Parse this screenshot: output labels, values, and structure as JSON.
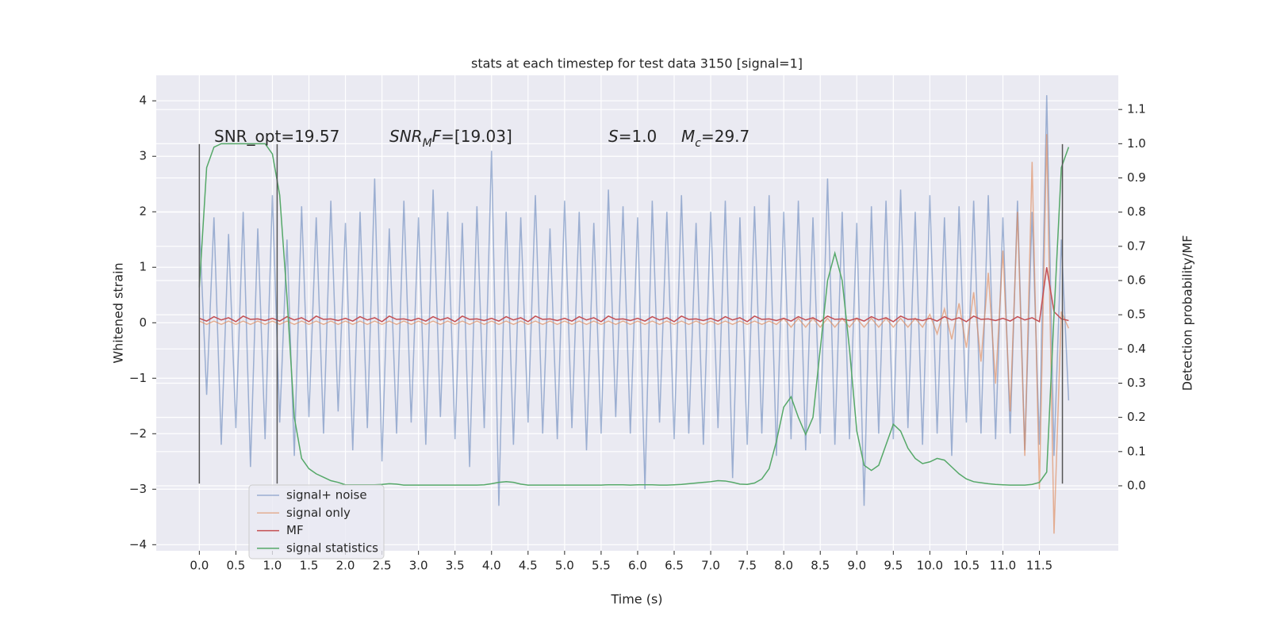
{
  "chart_data": {
    "type": "line",
    "title": "stats at each timestep for test data 3150 [signal=1]",
    "xlabel": "Time (s)",
    "ylabel": "Whitened strain",
    "y2label": "Detection probability/MF",
    "grid": true,
    "legend": "lower left",
    "xlim": [
      -0.59,
      12.58
    ],
    "ylim": [
      -4.11,
      4.46
    ],
    "y2lim": [
      -0.19,
      1.2
    ],
    "xticks": [
      {
        "value": 0,
        "label": "0.0"
      },
      {
        "value": 0.5,
        "label": "0.5"
      },
      {
        "value": 1,
        "label": "1.0"
      },
      {
        "value": 1.5,
        "label": "1.5"
      },
      {
        "value": 2,
        "label": "2.0"
      },
      {
        "value": 2.5,
        "label": "2.5"
      },
      {
        "value": 3,
        "label": "3.0"
      },
      {
        "value": 3.5,
        "label": "3.5"
      },
      {
        "value": 4,
        "label": "4.0"
      },
      {
        "value": 4.5,
        "label": "4.5"
      },
      {
        "value": 5,
        "label": "5.0"
      },
      {
        "value": 5.5,
        "label": "5.5"
      },
      {
        "value": 6,
        "label": "6.0"
      },
      {
        "value": 6.5,
        "label": "6.5"
      },
      {
        "value": 7,
        "label": "7.0"
      },
      {
        "value": 7.5,
        "label": "7.5"
      },
      {
        "value": 8,
        "label": "8.0"
      },
      {
        "value": 8.5,
        "label": "8.5"
      },
      {
        "value": 9,
        "label": "9.0"
      },
      {
        "value": 9.5,
        "label": "9.5"
      },
      {
        "value": 10,
        "label": "10.0"
      },
      {
        "value": 10.5,
        "label": "10.5"
      },
      {
        "value": 11,
        "label": "11.0"
      },
      {
        "value": 11.5,
        "label": "11.5"
      }
    ],
    "yticks": [
      {
        "value": -4,
        "label": "−4"
      },
      {
        "value": -3,
        "label": "−3"
      },
      {
        "value": -2,
        "label": "−2"
      },
      {
        "value": -1,
        "label": "−1"
      },
      0,
      1,
      2,
      3,
      4
    ],
    "y2ticks": [
      {
        "value": 0,
        "label": "0.0"
      },
      {
        "value": 0.1,
        "label": "0.1"
      },
      {
        "value": 0.2,
        "label": "0.2"
      },
      {
        "value": 0.3,
        "label": "0.3"
      },
      {
        "value": 0.4,
        "label": "0.4"
      },
      {
        "value": 0.5,
        "label": "0.5"
      },
      {
        "value": 0.6,
        "label": "0.6"
      },
      {
        "value": 0.7,
        "label": "0.7"
      },
      {
        "value": 0.8,
        "label": "0.8"
      },
      {
        "value": 0.9,
        "label": "0.9"
      },
      {
        "value": 1,
        "label": "1.0"
      },
      {
        "value": 1.1,
        "label": "1.1"
      }
    ],
    "annotations": [
      [
        {
          "text": "SNR_opt=19.57"
        }
      ],
      [
        {
          "text": "SNR",
          "italic": true
        },
        {
          "text": "M",
          "italic": true,
          "sub": true
        },
        {
          "text": "F",
          "italic": true
        },
        {
          "text": "=[19.03]"
        }
      ],
      [
        {
          "text": "S",
          "italic": true
        },
        {
          "text": "=1.0"
        }
      ],
      [
        {
          "text": "M",
          "italic": true
        },
        {
          "text": "c",
          "italic": true,
          "sub": true
        },
        {
          "text": "=29.7"
        }
      ]
    ],
    "vlines": {
      "x": [
        0,
        1.065,
        11.815
      ],
      "ymin": -2.9,
      "ymax": 3.22,
      "color": "#555555"
    },
    "x": [
      0,
      0.1,
      0.2,
      0.3,
      0.4,
      0.5,
      0.6,
      0.7,
      0.8,
      0.9,
      1,
      1.1,
      1.2,
      1.3,
      1.4,
      1.5,
      1.6,
      1.7,
      1.8,
      1.9,
      2,
      2.1,
      2.2,
      2.3,
      2.4,
      2.5,
      2.6,
      2.7,
      2.8,
      2.9,
      3,
      3.1,
      3.2,
      3.3,
      3.4,
      3.5,
      3.6,
      3.7,
      3.8,
      3.9,
      4,
      4.1,
      4.2,
      4.3,
      4.4,
      4.5,
      4.6,
      4.7,
      4.8,
      4.9,
      5,
      5.1,
      5.2,
      5.3,
      5.4,
      5.5,
      5.6,
      5.7,
      5.8,
      5.9,
      6,
      6.1,
      6.2,
      6.3,
      6.4,
      6.5,
      6.6,
      6.7,
      6.8,
      6.9,
      7,
      7.1,
      7.2,
      7.3,
      7.4,
      7.5,
      7.6,
      7.7,
      7.8,
      7.9,
      8,
      8.1,
      8.2,
      8.3,
      8.4,
      8.5,
      8.6,
      8.7,
      8.8,
      8.9,
      9,
      9.1,
      9.2,
      9.3,
      9.4,
      9.5,
      9.6,
      9.7,
      9.8,
      9.9,
      10,
      10.1,
      10.2,
      10.3,
      10.4,
      10.5,
      10.6,
      10.7,
      10.8,
      10.9,
      11,
      11.1,
      11.2,
      11.3,
      11.4,
      11.5,
      11.6,
      11.7,
      11.8,
      11.9
    ],
    "series": [
      {
        "name": "signal+ noise",
        "color": "#4c72b0",
        "opacity": 0.5,
        "values": [
          1.8,
          -1.3,
          1.9,
          -2.2,
          1.6,
          -1.9,
          2.0,
          -2.6,
          1.7,
          -2.1,
          2.3,
          -1.8,
          1.5,
          -2.4,
          2.1,
          -1.7,
          1.9,
          -2.0,
          2.2,
          -1.6,
          1.8,
          -2.3,
          2.0,
          -1.9,
          2.6,
          -2.5,
          1.7,
          -2.0,
          2.2,
          -1.8,
          1.9,
          -2.2,
          2.4,
          -1.7,
          2.0,
          -2.1,
          1.8,
          -2.6,
          2.1,
          -1.9,
          3.1,
          -3.3,
          2.0,
          -2.2,
          1.9,
          -1.8,
          2.3,
          -2.0,
          1.7,
          -2.1,
          2.2,
          -1.9,
          2.0,
          -2.3,
          1.8,
          -2.0,
          2.4,
          -1.7,
          2.1,
          -2.0,
          1.9,
          -3.0,
          2.2,
          -1.8,
          2.0,
          -2.1,
          2.3,
          -2.0,
          1.8,
          -2.2,
          2.0,
          -1.9,
          2.2,
          -2.8,
          1.9,
          -2.2,
          2.1,
          -2.0,
          2.3,
          -2.4,
          2.0,
          -2.1,
          2.2,
          -2.3,
          1.9,
          -2.0,
          2.6,
          -2.2,
          2.0,
          -2.1,
          1.8,
          -3.3,
          2.1,
          -2.0,
          2.2,
          -2.1,
          2.4,
          -1.9,
          2.0,
          -2.2,
          2.3,
          -2.0,
          1.9,
          -2.4,
          2.1,
          -1.8,
          2.2,
          -2.0,
          2.3,
          -2.1,
          1.9,
          -2.0,
          2.2,
          -2.3,
          2.0,
          -2.2,
          4.1,
          -2.4,
          1.5,
          -1.4
        ]
      },
      {
        "name": "signal only",
        "color": "#dd8452",
        "opacity": 0.6,
        "values": [
          0.03,
          -0.03,
          0.03,
          -0.03,
          0.03,
          -0.03,
          0.03,
          -0.03,
          0.03,
          -0.03,
          0.03,
          -0.03,
          0.03,
          -0.03,
          0.03,
          -0.03,
          0.03,
          -0.03,
          0.03,
          -0.03,
          0.03,
          -0.03,
          0.03,
          -0.03,
          0.03,
          -0.03,
          0.03,
          -0.03,
          0.03,
          -0.03,
          0.03,
          -0.03,
          0.03,
          -0.03,
          0.03,
          -0.03,
          0.03,
          -0.03,
          0.03,
          -0.03,
          0.03,
          -0.03,
          0.03,
          -0.03,
          0.03,
          -0.03,
          0.03,
          -0.03,
          0.03,
          -0.03,
          0.03,
          -0.03,
          0.03,
          -0.03,
          0.03,
          -0.03,
          0.03,
          -0.03,
          0.03,
          -0.03,
          0.03,
          -0.03,
          0.03,
          -0.03,
          0.03,
          -0.03,
          0.03,
          -0.03,
          0.03,
          -0.03,
          0.03,
          -0.03,
          0.03,
          -0.03,
          0.03,
          -0.03,
          0.03,
          -0.03,
          0.03,
          -0.03,
          0.08,
          -0.08,
          0.08,
          -0.08,
          0.08,
          -0.08,
          0.08,
          -0.08,
          0.08,
          -0.08,
          0.08,
          -0.08,
          0.08,
          -0.08,
          0.08,
          -0.08,
          0.08,
          -0.08,
          0.08,
          -0.08,
          0.15,
          -0.2,
          0.25,
          -0.3,
          0.35,
          -0.45,
          0.55,
          -0.7,
          0.9,
          -1.1,
          1.3,
          -1.6,
          2.0,
          -2.4,
          2.9,
          -3.0,
          3.4,
          -3.8,
          0.2,
          -0.1
        ]
      },
      {
        "name": "MF",
        "color": "#c44e52",
        "opacity": 1,
        "values": [
          0.08,
          0.03,
          0.11,
          0.05,
          0.09,
          0.02,
          0.12,
          0.06,
          0.07,
          0.04,
          0.08,
          0.03,
          0.11,
          0.05,
          0.09,
          0.02,
          0.12,
          0.06,
          0.07,
          0.04,
          0.08,
          0.03,
          0.11,
          0.05,
          0.09,
          0.02,
          0.12,
          0.06,
          0.07,
          0.04,
          0.08,
          0.03,
          0.11,
          0.05,
          0.09,
          0.02,
          0.12,
          0.06,
          0.07,
          0.04,
          0.08,
          0.03,
          0.11,
          0.05,
          0.09,
          0.02,
          0.12,
          0.06,
          0.07,
          0.04,
          0.08,
          0.03,
          0.11,
          0.05,
          0.09,
          0.02,
          0.12,
          0.06,
          0.07,
          0.04,
          0.08,
          0.03,
          0.11,
          0.05,
          0.09,
          0.02,
          0.12,
          0.06,
          0.07,
          0.04,
          0.08,
          0.03,
          0.11,
          0.05,
          0.09,
          0.02,
          0.12,
          0.06,
          0.07,
          0.04,
          0.08,
          0.03,
          0.11,
          0.05,
          0.09,
          0.02,
          0.12,
          0.06,
          0.07,
          0.04,
          0.08,
          0.03,
          0.11,
          0.05,
          0.09,
          0.02,
          0.12,
          0.06,
          0.07,
          0.04,
          0.08,
          0.03,
          0.11,
          0.05,
          0.09,
          0.02,
          0.12,
          0.06,
          0.07,
          0.04,
          0.08,
          0.03,
          0.11,
          0.05,
          0.09,
          0.02,
          1.0,
          0.2,
          0.07,
          0.04
        ]
      },
      {
        "name": "signal statistics",
        "color": "#55a868",
        "opacity": 1,
        "axis": "y2",
        "values": [
          0.58,
          0.93,
          0.99,
          1.0,
          1.0,
          1.0,
          1.0,
          1.0,
          1.0,
          1.0,
          0.97,
          0.85,
          0.55,
          0.2,
          0.08,
          0.05,
          0.035,
          0.025,
          0.015,
          0.01,
          0.003,
          0.003,
          0.003,
          0.003,
          0.003,
          0.004,
          0.006,
          0.005,
          0.002,
          0.002,
          0.002,
          0.002,
          0.002,
          0.002,
          0.002,
          0.002,
          0.002,
          0.002,
          0.002,
          0.003,
          0.006,
          0.01,
          0.012,
          0.01,
          0.005,
          0.002,
          0.002,
          0.002,
          0.002,
          0.002,
          0.002,
          0.002,
          0.002,
          0.002,
          0.002,
          0.002,
          0.003,
          0.003,
          0.003,
          0.002,
          0.003,
          0.003,
          0.003,
          0.002,
          0.002,
          0.003,
          0.004,
          0.006,
          0.008,
          0.01,
          0.012,
          0.015,
          0.014,
          0.01,
          0.005,
          0.004,
          0.008,
          0.02,
          0.05,
          0.13,
          0.23,
          0.26,
          0.2,
          0.15,
          0.2,
          0.4,
          0.6,
          0.68,
          0.6,
          0.4,
          0.16,
          0.06,
          0.045,
          0.06,
          0.12,
          0.18,
          0.16,
          0.11,
          0.08,
          0.065,
          0.07,
          0.08,
          0.075,
          0.055,
          0.035,
          0.02,
          0.012,
          0.009,
          0.006,
          0.004,
          0.003,
          0.002,
          0.002,
          0.002,
          0.004,
          0.01,
          0.04,
          0.5,
          0.93,
          0.99
        ]
      }
    ]
  }
}
